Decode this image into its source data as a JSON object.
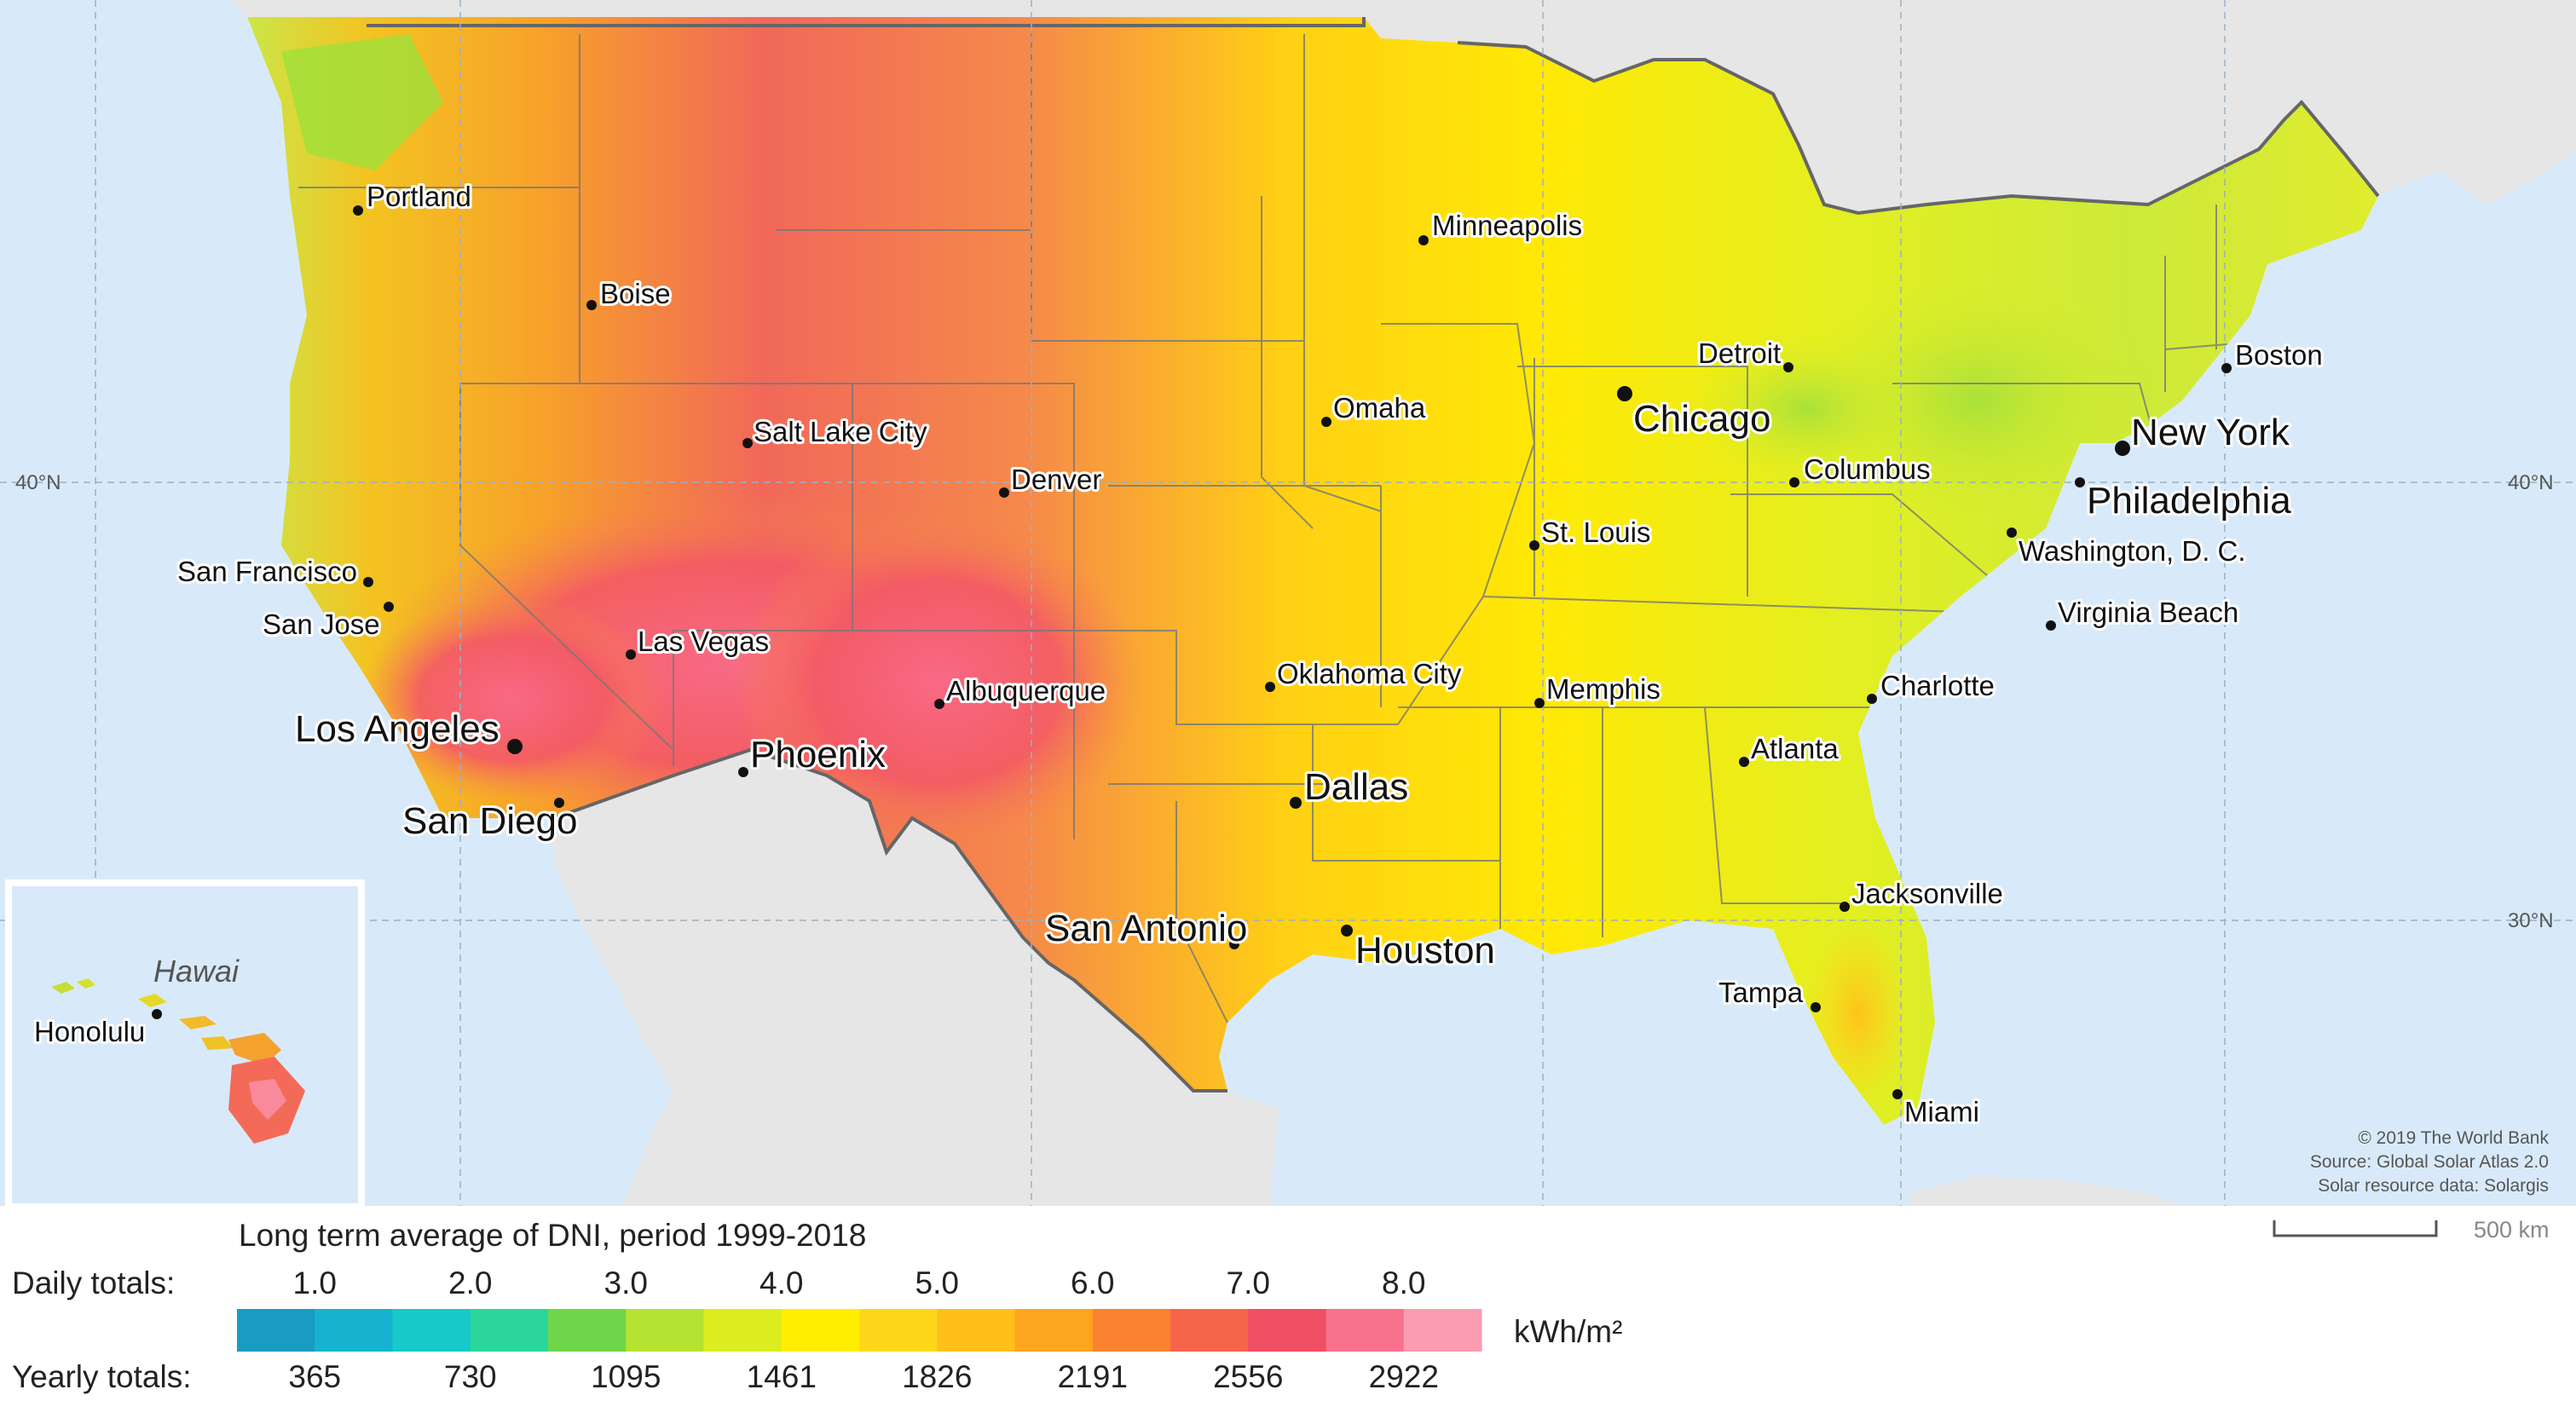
{
  "gridlines": {
    "lat_40": "40°N",
    "lat_30": "30°N"
  },
  "inset": {
    "title": "Hawai",
    "city": "Honolulu"
  },
  "cities": {
    "portland": "Portland",
    "boise": "Boise",
    "salt_lake_city": "Salt Lake City",
    "denver": "Denver",
    "minneapolis": "Minneapolis",
    "omaha": "Omaha",
    "chicago": "Chicago",
    "detroit": "Detroit",
    "columbus": "Columbus",
    "boston": "Boston",
    "new_york": "New York",
    "philadelphia": "Philadelphia",
    "washington": "Washington, D. C.",
    "virginia_beach": "Virginia Beach",
    "st_louis": "St. Louis",
    "san_francisco": "San Francisco",
    "san_jose": "San Jose",
    "las_vegas": "Las Vegas",
    "los_angeles": "Los Angeles",
    "san_diego": "San Diego",
    "phoenix": "Phoenix",
    "albuquerque": "Albuquerque",
    "oklahoma_city": "Oklahoma City",
    "memphis": "Memphis",
    "charlotte": "Charlotte",
    "atlanta": "Atlanta",
    "dallas": "Dallas",
    "san_antonio": "San Antonio",
    "houston": "Houston",
    "jacksonville": "Jacksonville",
    "tampa": "Tampa",
    "miami": "Miami"
  },
  "credits": [
    "© 2019 The World Bank",
    "Source: Global Solar Atlas 2.0",
    "Solar resource data: Solargis"
  ],
  "scale_bar": "500 km",
  "legend": {
    "title": "Long term average of DNI, period 1999-2018",
    "daily_label": "Daily totals:",
    "yearly_label": "Yearly totals:",
    "unit": "kWh/m²",
    "daily_ticks": [
      "1.0",
      "2.0",
      "3.0",
      "4.0",
      "5.0",
      "6.0",
      "7.0",
      "8.0"
    ],
    "yearly_ticks": [
      "365",
      "730",
      "1095",
      "1461",
      "1826",
      "2191",
      "2556",
      "2922"
    ],
    "colors": [
      "#1a9bc4",
      "#15b3cf",
      "#18c9c9",
      "#2ad69b",
      "#6fd64a",
      "#b6e332",
      "#dced1f",
      "#ffee00",
      "#ffd71a",
      "#ffc01a",
      "#fda51d",
      "#f9832e",
      "#f5654a",
      "#f04e63",
      "#f8728d",
      "#fc9cb0"
    ]
  },
  "colors": {
    "ocean": "#d8eaf9",
    "land_gray": "#e6e6e6",
    "border": "#666666"
  }
}
